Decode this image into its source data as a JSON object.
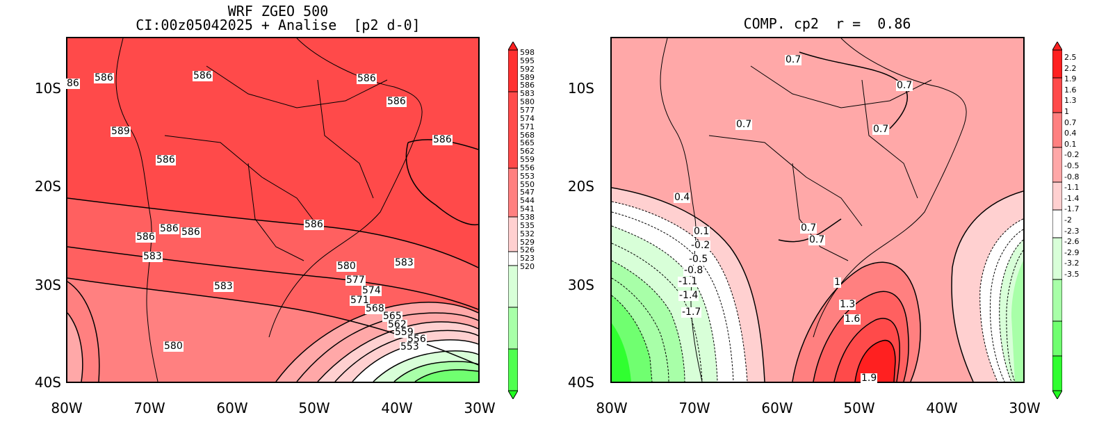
{
  "left_panel": {
    "title_line1": "WRF ZGEO 500",
    "title_line2": "CI:00z05042025 + Analise  [p2 d-0]",
    "y_labels": [
      "10S",
      "20S",
      "30S",
      "40S"
    ],
    "x_labels": [
      "80W",
      "70W",
      "60W",
      "50W",
      "40W",
      "30W"
    ],
    "contour_labels": [
      "86",
      "586",
      "586",
      "586",
      "586",
      "589",
      "586",
      "586",
      "586",
      "586",
      "586",
      "586",
      "583",
      "583",
      "580",
      "583",
      "577",
      "574",
      "571",
      "568",
      "565",
      "562",
      "559",
      "556",
      "553",
      "580"
    ],
    "colorbar": [
      "598",
      "595",
      "592",
      "589",
      "586",
      "583",
      "580",
      "577",
      "574",
      "571",
      "568",
      "565",
      "562",
      "559",
      "556",
      "553",
      "550",
      "547",
      "544",
      "541",
      "538",
      "535",
      "532",
      "529",
      "526",
      "523",
      "520"
    ]
  },
  "right_panel": {
    "title": "COMP. cp2  r =  0.86",
    "y_labels": [
      "10S",
      "20S",
      "30S",
      "40S"
    ],
    "x_labels": [
      "80W",
      "70W",
      "60W",
      "50W",
      "40W",
      "30W"
    ],
    "contour_labels": [
      "0.7",
      "0.7",
      "0.7",
      "0.7",
      "0.4",
      "0.7",
      "0.7",
      "0.1",
      "-0.2",
      "-0.5",
      "-0.8",
      "-1.1",
      "-1.4",
      "-1.7",
      "1",
      "1.3",
      "1.6",
      "1.9"
    ],
    "colorbar": [
      "2.5",
      "2.2",
      "1.9",
      "1.6",
      "1.3",
      "1",
      "0.7",
      "0.4",
      "0.1",
      "-0.2",
      "-0.5",
      "-0.8",
      "-1.1",
      "-1.4",
      "-1.7",
      "-2",
      "-2.3",
      "-2.6",
      "-2.9",
      "-3.2",
      "-3.5"
    ]
  },
  "colors": {
    "deep_red": "#ff2020",
    "red": "#ff4a4a",
    "salmon": "#ff8080",
    "pink": "#ffa8a8",
    "pale_pink": "#ffd0d0",
    "white": "#ffffff",
    "pale_green": "#d8ffd8",
    "light_green": "#a8ffa8",
    "green": "#70ff70",
    "bright_green": "#20ff20"
  }
}
